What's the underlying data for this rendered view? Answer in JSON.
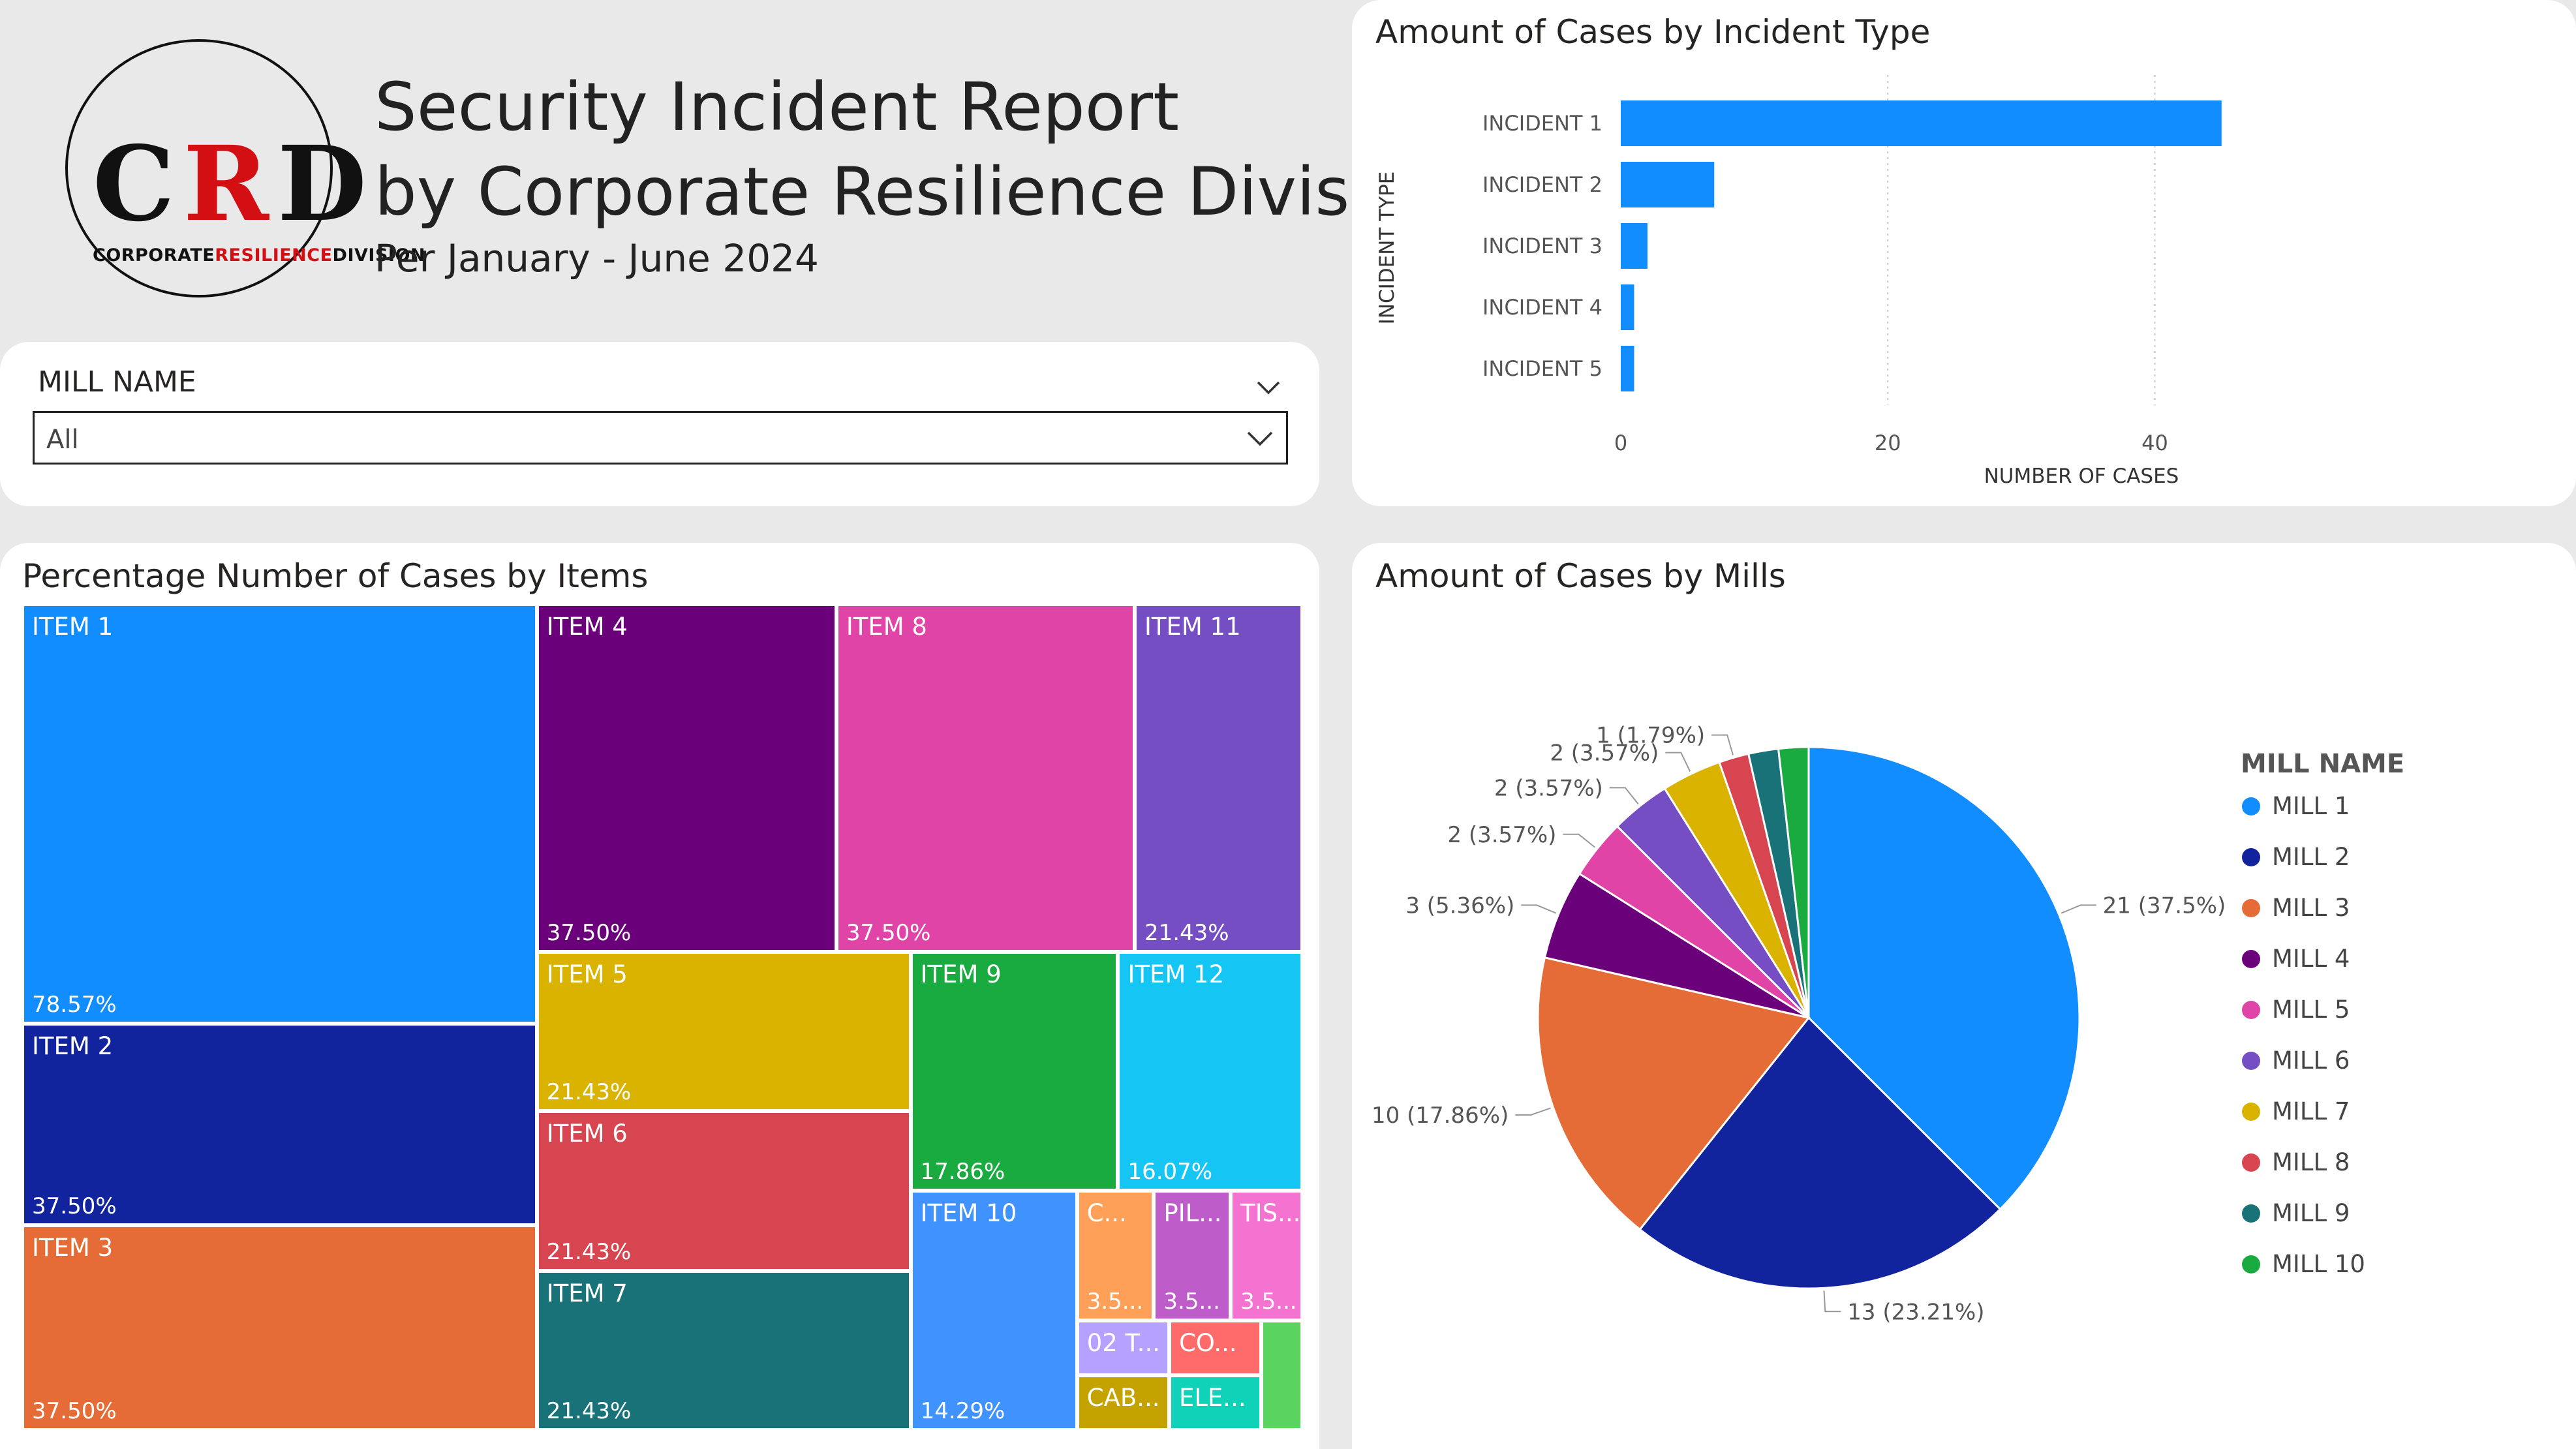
{
  "logo": {
    "letters": [
      "C",
      "R",
      "D"
    ],
    "sub": [
      "CORPORATE",
      "RESILIENCE",
      "DIVISION"
    ]
  },
  "header": {
    "title_line1": "Security Incident Report",
    "title_line2": "by Corporate Resilience Division",
    "subtitle": "Per January - June 2024"
  },
  "slicer": {
    "label": "MILL NAME",
    "value": "All"
  },
  "incident_chart": {
    "title": "Amount of Cases by Incident Type",
    "xlabel": "NUMBER OF CASES",
    "ylabel": "INCIDENT TYPE",
    "ticks": [
      "0",
      "20",
      "40"
    ]
  },
  "treemap": {
    "title": "Percentage Number of Cases by Items",
    "tiles": [
      {
        "label": "ITEM 1",
        "pct": "78.57%",
        "color": "#118dff"
      },
      {
        "label": "ITEM 2",
        "pct": "37.50%",
        "color": "#12239e"
      },
      {
        "label": "ITEM 3",
        "pct": "37.50%",
        "color": "#e66c37"
      },
      {
        "label": "ITEM 4",
        "pct": "37.50%",
        "color": "#6b007b"
      },
      {
        "label": "ITEM 8",
        "pct": "37.50%",
        "color": "#e044a7"
      },
      {
        "label": "ITEM 11",
        "pct": "21.43%",
        "color": "#744ec2"
      },
      {
        "label": "ITEM 5",
        "pct": "21.43%",
        "color": "#d9b300"
      },
      {
        "label": "ITEM 6",
        "pct": "21.43%",
        "color": "#d64550"
      },
      {
        "label": "ITEM 7",
        "pct": "21.43%",
        "color": "#197278"
      },
      {
        "label": "ITEM 9",
        "pct": "17.86%",
        "color": "#1aab40"
      },
      {
        "label": "ITEM 12",
        "pct": "16.07%",
        "color": "#15c6f4"
      },
      {
        "label": "ITEM 10",
        "pct": "14.29%",
        "color": "#4092ff"
      },
      {
        "label": "C...",
        "pct": "3.5...",
        "color": "#ffa058"
      },
      {
        "label": "PIL...",
        "pct": "3.5...",
        "color": "#be5dc9"
      },
      {
        "label": "TIS...",
        "pct": "3.5...",
        "color": "#f472d0"
      },
      {
        "label": "02 T...",
        "pct": "",
        "color": "#b5a1ff"
      },
      {
        "label": "CO...",
        "pct": "",
        "color": "#ff6b6b"
      },
      {
        "label": "",
        "pct": "",
        "color": "#5ad45e"
      },
      {
        "label": "CAB...",
        "pct": "",
        "color": "#c4a200"
      },
      {
        "label": "ELE...",
        "pct": "",
        "color": "#0fd2b8"
      }
    ]
  },
  "mills_chart": {
    "title": "Amount of Cases by Mills",
    "legend_title": "MILL NAME"
  },
  "chart_data": [
    {
      "type": "bar",
      "orientation": "horizontal",
      "title": "Amount of Cases by Incident Type",
      "xlabel": "NUMBER OF CASES",
      "ylabel": "INCIDENT TYPE",
      "categories": [
        "INCIDENT 1",
        "INCIDENT 2",
        "INCIDENT 3",
        "INCIDENT 4",
        "INCIDENT 5"
      ],
      "values": [
        45,
        7,
        2,
        1,
        1
      ],
      "xlim": [
        0,
        52
      ],
      "xticks": [
        0,
        20,
        40
      ],
      "color": "#118dff",
      "grid": true
    },
    {
      "type": "pie",
      "title": "Amount of Cases by Mills",
      "legend_title": "MILL NAME",
      "legend_position": "right",
      "categories": [
        "MILL 1",
        "MILL 2",
        "MILL 3",
        "MILL 4",
        "MILL 5",
        "MILL 6",
        "MILL 7",
        "MILL 8",
        "MILL 9",
        "MILL 10"
      ],
      "values": [
        21,
        13,
        10,
        3,
        2,
        2,
        2,
        1,
        1,
        1
      ],
      "colors": [
        "#118dff",
        "#12239e",
        "#e66c37",
        "#6b007b",
        "#e044a7",
        "#744ec2",
        "#d9b300",
        "#d64550",
        "#197278",
        "#1aab40"
      ],
      "data_labels": [
        "21 (37.5%)",
        "13 (23.21%)",
        "10 (17.86%)",
        "3 (5.36%)",
        "2 (3.57%)",
        "2 (3.57%)",
        "2 (3.57%)",
        "1 (1.79%)",
        "",
        ""
      ]
    }
  ]
}
